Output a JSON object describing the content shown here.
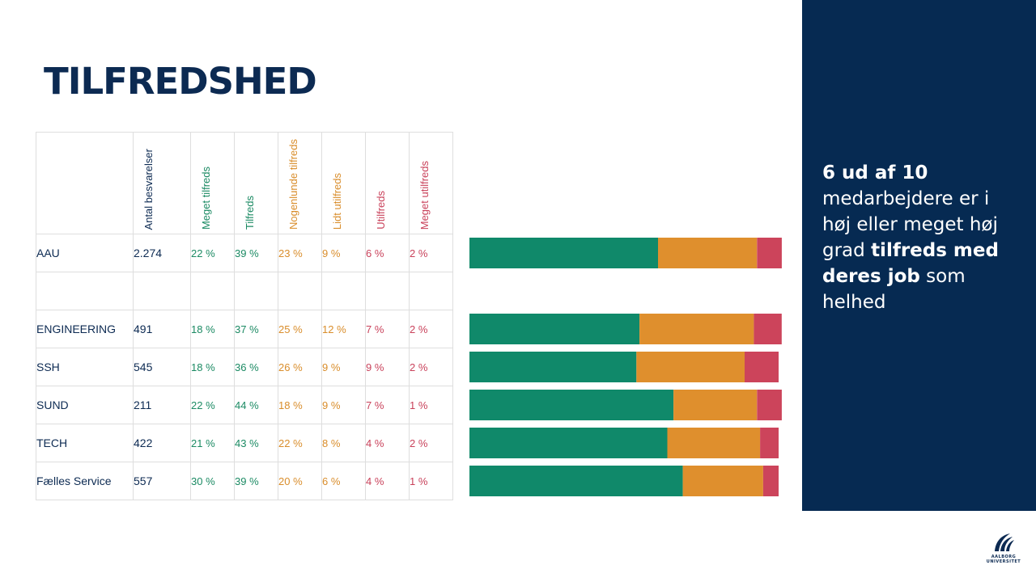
{
  "title": "TILFREDSHED",
  "columns": [
    "Antal besvarelser",
    "Meget tilfreds",
    "Tilfreds",
    "Nogenlunde tilfreds",
    "Lidt utilfreds",
    "Utilfreds",
    "Meget utilfreds"
  ],
  "rows": [
    {
      "name": "AAU",
      "n": "2.274",
      "vals": [
        "22 %",
        "39 %",
        "23 %",
        "9 %",
        "6 %",
        "2 %"
      ]
    },
    {
      "name": "",
      "n": "",
      "vals": [
        "",
        "",
        "",
        "",
        "",
        ""
      ]
    },
    {
      "name": "ENGINEERING",
      "n": "491",
      "vals": [
        "18 %",
        "37 %",
        "25 %",
        "12 %",
        "7 %",
        "2 %"
      ]
    },
    {
      "name": "SSH",
      "n": "545",
      "vals": [
        "18 %",
        "36 %",
        "26 %",
        "9 %",
        "9 %",
        "2 %"
      ]
    },
    {
      "name": "SUND",
      "n": "211",
      "vals": [
        "22 %",
        "44 %",
        "18 %",
        "9 %",
        "7 %",
        "1 %"
      ]
    },
    {
      "name": "TECH",
      "n": "422",
      "vals": [
        "21 %",
        "43 %",
        "22 %",
        "8 %",
        "4 %",
        "2 %"
      ]
    },
    {
      "name": "Fælles Service",
      "n": "557",
      "vals": [
        "30 %",
        "39 %",
        "20 %",
        "6 %",
        "4 %",
        "1 %"
      ]
    }
  ],
  "sidebar": {
    "line1": "6 ud af 10",
    "line2": " medarbejdere er i høj eller meget høj grad ",
    "line3": "tilfreds med deres job",
    "line4": " som helhed"
  },
  "logo": {
    "line1": "AALBORG",
    "line2": "UNIVERSITET"
  },
  "colors": {
    "green": "#10896a",
    "orange": "#df8f2d",
    "red": "#cc445b",
    "navy": "#062a52"
  },
  "chart_data": {
    "type": "bar",
    "orientation": "horizontal",
    "stacked": true,
    "categories": [
      "AAU",
      "ENGINEERING",
      "SSH",
      "SUND",
      "TECH",
      "Fælles Service"
    ],
    "series": [
      {
        "name": "",
        "color": "#10896a",
        "values": [
          61,
          55,
          54,
          66,
          64,
          69
        ]
      },
      {
        "name": "",
        "color": "#df8f2d",
        "values": [
          32,
          37,
          35,
          27,
          30,
          26
        ]
      },
      {
        "name": "",
        "color": "#cc445b",
        "values": [
          8,
          9,
          11,
          8,
          6,
          5
        ]
      }
    ],
    "xlim": [
      0,
      100
    ]
  }
}
